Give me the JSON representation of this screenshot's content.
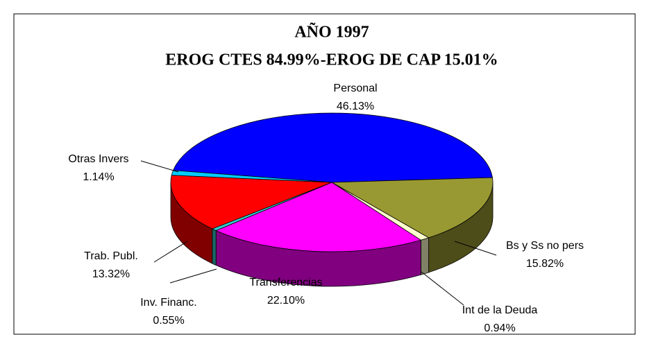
{
  "chart_data": {
    "type": "pie3d",
    "title": "AÑO 1997",
    "subtitle": "EROG CTES 84.99%-EROG DE CAP 15.01%",
    "categories": [
      "Personal",
      "Bs y Ss no pers",
      "Int de la Deuda",
      "Transferencias",
      "Inv. Financ.",
      "Trab. Publ.",
      "Otras Invers"
    ],
    "values": [
      46.13,
      15.82,
      0.94,
      22.1,
      0.55,
      13.32,
      1.14
    ],
    "value_labels": [
      "46.13%",
      "15.82%",
      "0.94%",
      "22.10%",
      "0.55%",
      "13.32%",
      "1.14%"
    ],
    "colors": [
      "#0000ff",
      "#999933",
      "#ffffcc",
      "#ff00ff",
      "#33cccc",
      "#ff0000",
      "#00ccff"
    ]
  }
}
